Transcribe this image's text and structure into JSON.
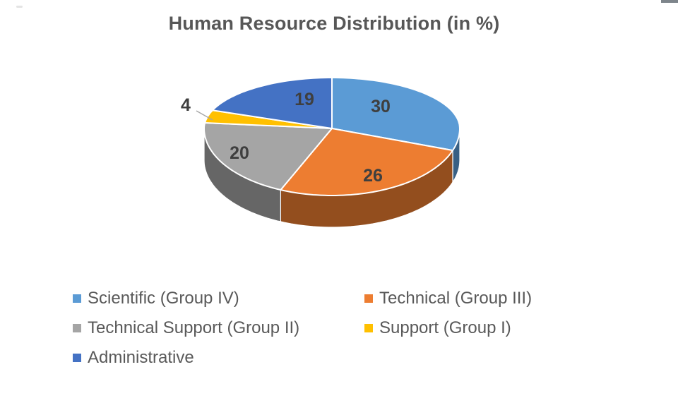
{
  "chart_data": {
    "type": "pie",
    "style": "3d",
    "title": "Human Resource Distribution (in %)",
    "direction": "clockwise",
    "start_angle_deg": 0,
    "legend_position": "bottom",
    "legend_columns": 2,
    "series": [
      {
        "label": "Scientific (Group IV)",
        "value": 30,
        "color": "#5B9BD5"
      },
      {
        "label": "Technical (Group III)",
        "value": 26,
        "color": "#ED7D31"
      },
      {
        "label": "Technical Support (Group II)",
        "value": 20,
        "color": "#A5A5A5"
      },
      {
        "label": "Support (Group I)",
        "value": 4,
        "color": "#FFC000"
      },
      {
        "label": "Administrative",
        "value": 19,
        "color": "#4472C4"
      }
    ],
    "colors": {
      "title_text": "#575757",
      "data_label_text": "#3F3F3F",
      "legend_text": "#595959",
      "leader_line": "#A6A6A6",
      "slice_border": "#FFFFFF",
      "background": "#FFFFFF"
    }
  }
}
